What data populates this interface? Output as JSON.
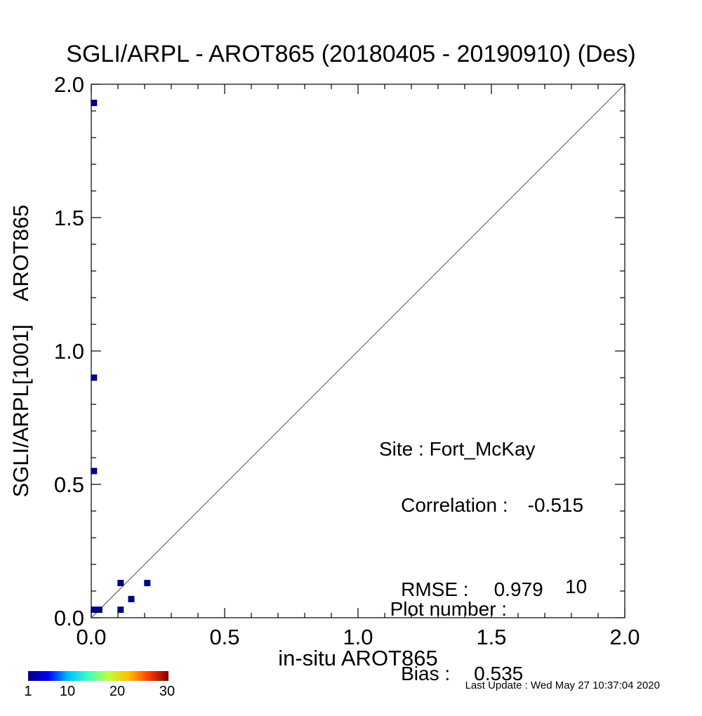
{
  "chart_data": {
    "type": "scatter",
    "title": "SGLI/ARPL - AROT865 (20180405 - 20190910) (Des)",
    "xlabel": "in-situ AROT865",
    "ylabel": "SGLI/ARPL[1001]    AROT865",
    "xlim": [
      0.0,
      2.0
    ],
    "ylim": [
      0.0,
      2.0
    ],
    "xticks": [
      "0.0",
      "0.5",
      "1.0",
      "1.5",
      "2.0"
    ],
    "yticks": [
      "0.0",
      "0.5",
      "1.0",
      "1.5",
      "2.0"
    ],
    "reference_line": "y = x",
    "points": [
      {
        "x": 0.01,
        "y": 1.93
      },
      {
        "x": 0.01,
        "y": 0.9
      },
      {
        "x": 0.01,
        "y": 0.55
      },
      {
        "x": 0.01,
        "y": 0.03
      },
      {
        "x": 0.03,
        "y": 0.03
      },
      {
        "x": 0.11,
        "y": 0.13
      },
      {
        "x": 0.21,
        "y": 0.13
      },
      {
        "x": 0.15,
        "y": 0.07
      },
      {
        "x": 0.11,
        "y": 0.03
      }
    ],
    "point_color": "#000080",
    "colorbar": {
      "ticks": [
        "1",
        "10",
        "20",
        "30"
      ]
    }
  },
  "stats": {
    "site_label": "Site : Fort_McKay",
    "correlation_label": "Correlation :",
    "correlation_value": "-0.515",
    "rmse_label": "RMSE :",
    "rmse_value": "0.979",
    "bias_label": "Bias :",
    "bias_value": "0.535",
    "plot_number_label": "Plot number :",
    "plot_number_value": "10"
  },
  "footer": {
    "last_update": "Last Update : Wed May 27 10:37:04 2020"
  }
}
